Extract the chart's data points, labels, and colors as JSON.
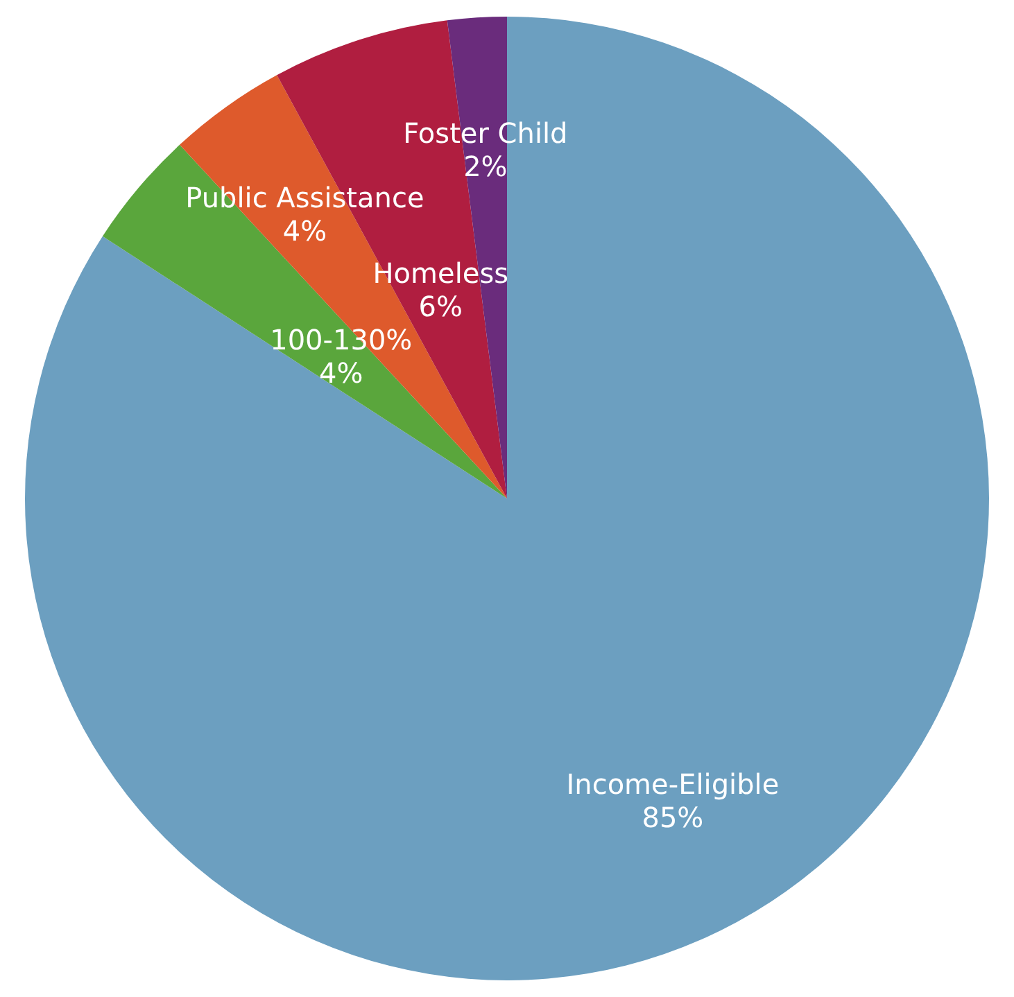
{
  "chart_data": {
    "type": "pie",
    "categories": [
      "Income-Eligible",
      "100-130%",
      "Public Assistance",
      "Homeless",
      "Foster Child"
    ],
    "values": [
      85,
      4,
      4,
      6,
      2
    ],
    "colors": [
      "#6c9fc0",
      "#5aa63c",
      "#de5a2c",
      "#b01e40",
      "#6a2c7c"
    ],
    "value_labels": [
      "85%",
      "4%",
      "4%",
      "6%",
      "2%"
    ],
    "legend": false
  }
}
